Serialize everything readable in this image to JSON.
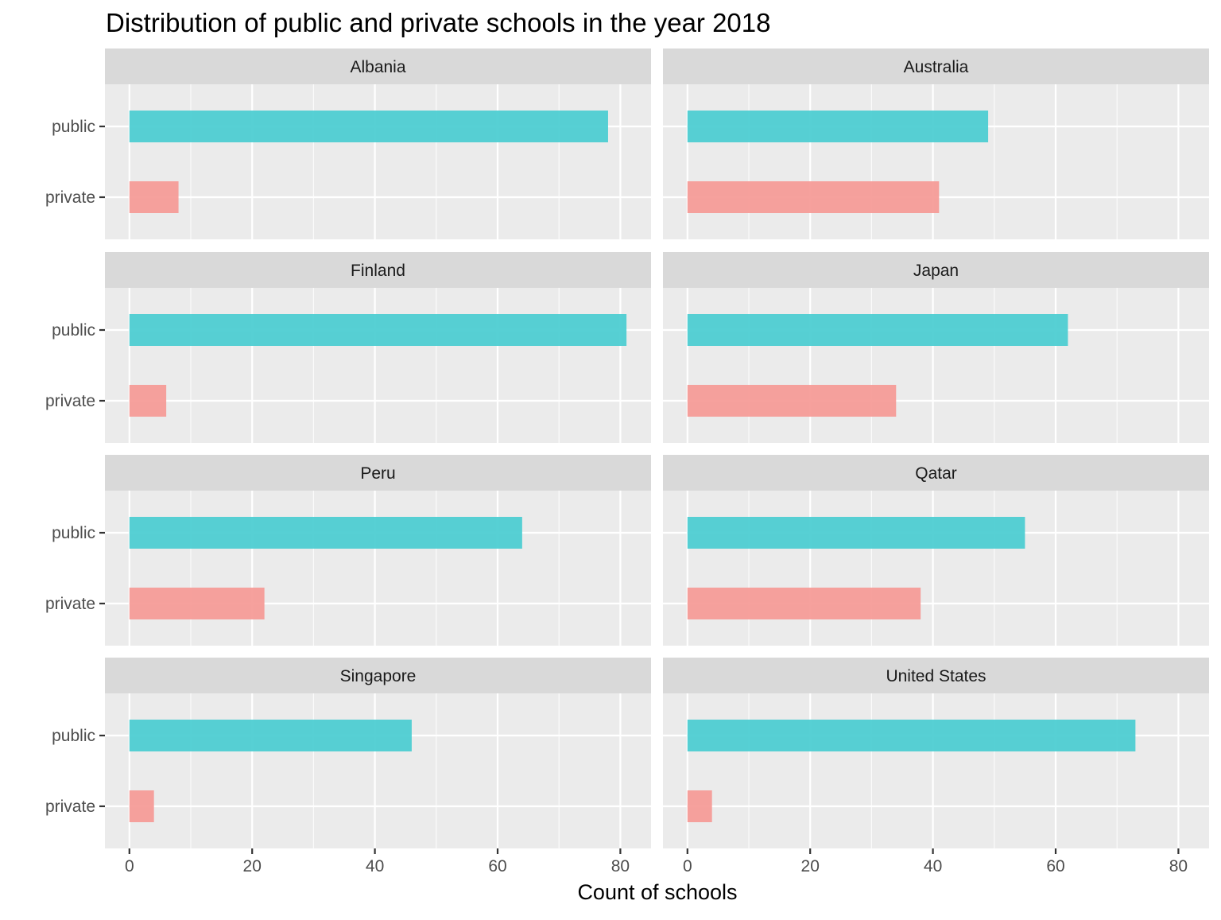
{
  "chart_data": {
    "type": "bar",
    "orientation": "horizontal",
    "faceted": true,
    "title": "Distribution of public and private schools in the year 2018",
    "xlabel": "Count of schools",
    "ylabel": "",
    "xlim": [
      0,
      82
    ],
    "xticks": [
      0,
      20,
      40,
      60,
      80
    ],
    "categories": [
      "public",
      "private"
    ],
    "colors": {
      "public": "#4ecdd2",
      "private": "#f59c98",
      "panel_background": "#ebebeb",
      "strip_background": "#d9d9d9",
      "grid": "#ffffff"
    },
    "grid": true,
    "legend": "none",
    "panels": [
      {
        "label": "Albania",
        "values": {
          "public": 78,
          "private": 8
        }
      },
      {
        "label": "Australia",
        "values": {
          "public": 49,
          "private": 41
        }
      },
      {
        "label": "Finland",
        "values": {
          "public": 81,
          "private": 6
        }
      },
      {
        "label": "Japan",
        "values": {
          "public": 62,
          "private": 34
        }
      },
      {
        "label": "Peru",
        "values": {
          "public": 64,
          "private": 22
        }
      },
      {
        "label": "Qatar",
        "values": {
          "public": 55,
          "private": 38
        }
      },
      {
        "label": "Singapore",
        "values": {
          "public": 46,
          "private": 4
        }
      },
      {
        "label": "United States",
        "values": {
          "public": 73,
          "private": 4
        }
      }
    ]
  }
}
